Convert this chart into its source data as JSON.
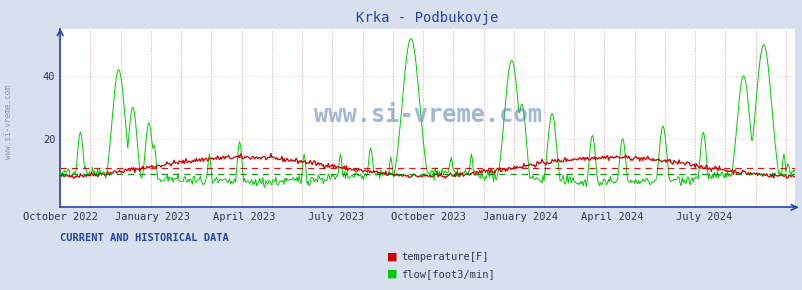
{
  "title": "Krka - Podbukovje",
  "title_color": "#2244aa",
  "background_color": "#d8e0f0",
  "plot_bg_color": "#ffffff",
  "yticks": [
    20,
    40
  ],
  "ylim": [
    -2,
    55
  ],
  "x_tick_labels": [
    "October 2022",
    "January 2023",
    "April 2023",
    "July 2023",
    "October 2023",
    "January 2024",
    "April 2024",
    "July 2024"
  ],
  "x_tick_positions": [
    0,
    92,
    183,
    274,
    365,
    457,
    548,
    639
  ],
  "temp_color": "#cc0000",
  "flow_color": "#00cc00",
  "flow_dark_color": "#008800",
  "temp_hline": 10.5,
  "flow_hline": 8.5,
  "axis_color": "#2244bb",
  "vgrid_color": "#dd9999",
  "hgrid_color": "#cccccc",
  "watermark": "www.si-vreme.com",
  "watermark_color": "#6688bb",
  "legend_label_temp": "temperature[F]",
  "legend_label_flow": "flow[foot3/min]",
  "footer_text": "CURRENT AND HISTORICAL DATA",
  "footer_color": "#2244aa",
  "left_label": "www.si-vreme.com",
  "n_days": 730,
  "spike_positions": [
    20,
    58,
    72,
    88,
    93,
    148,
    178,
    242,
    278,
    308,
    328,
    348,
    353,
    388,
    408,
    448,
    458,
    488,
    528,
    558,
    598,
    638,
    678,
    698,
    718,
    722
  ],
  "spike_heights": [
    22,
    42,
    30,
    25,
    18,
    15,
    19,
    15,
    15,
    17,
    14,
    52,
    35,
    14,
    15,
    45,
    31,
    28,
    21,
    20,
    24,
    22,
    40,
    50,
    15,
    12
  ]
}
